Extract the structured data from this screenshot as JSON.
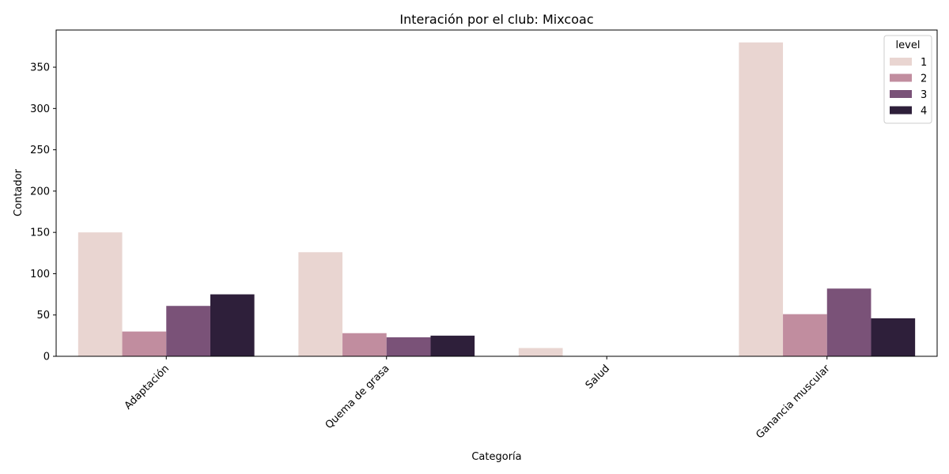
{
  "chart_data": {
    "type": "bar",
    "title": "Interación por el club: Mixcoac",
    "xlabel": "Categoría",
    "ylabel": "Contador",
    "categories": [
      "Adaptación",
      "Quema de grasa",
      "Salud",
      "Ganancia muscular"
    ],
    "series": [
      {
        "name": "1",
        "color": "#e9d5d1",
        "values": [
          150,
          126,
          10,
          380
        ]
      },
      {
        "name": "2",
        "color": "#c18d9f",
        "values": [
          30,
          28,
          0,
          51
        ]
      },
      {
        "name": "3",
        "color": "#7a5278",
        "values": [
          61,
          23,
          0,
          82
        ]
      },
      {
        "name": "4",
        "color": "#2e1f3a",
        "values": [
          75,
          25,
          0,
          46
        ]
      }
    ],
    "ylim": [
      0,
      395
    ],
    "yticks": [
      0,
      50,
      100,
      150,
      200,
      250,
      300,
      350
    ],
    "legend": {
      "title": "level",
      "placement": "top-right"
    },
    "grid": false
  }
}
